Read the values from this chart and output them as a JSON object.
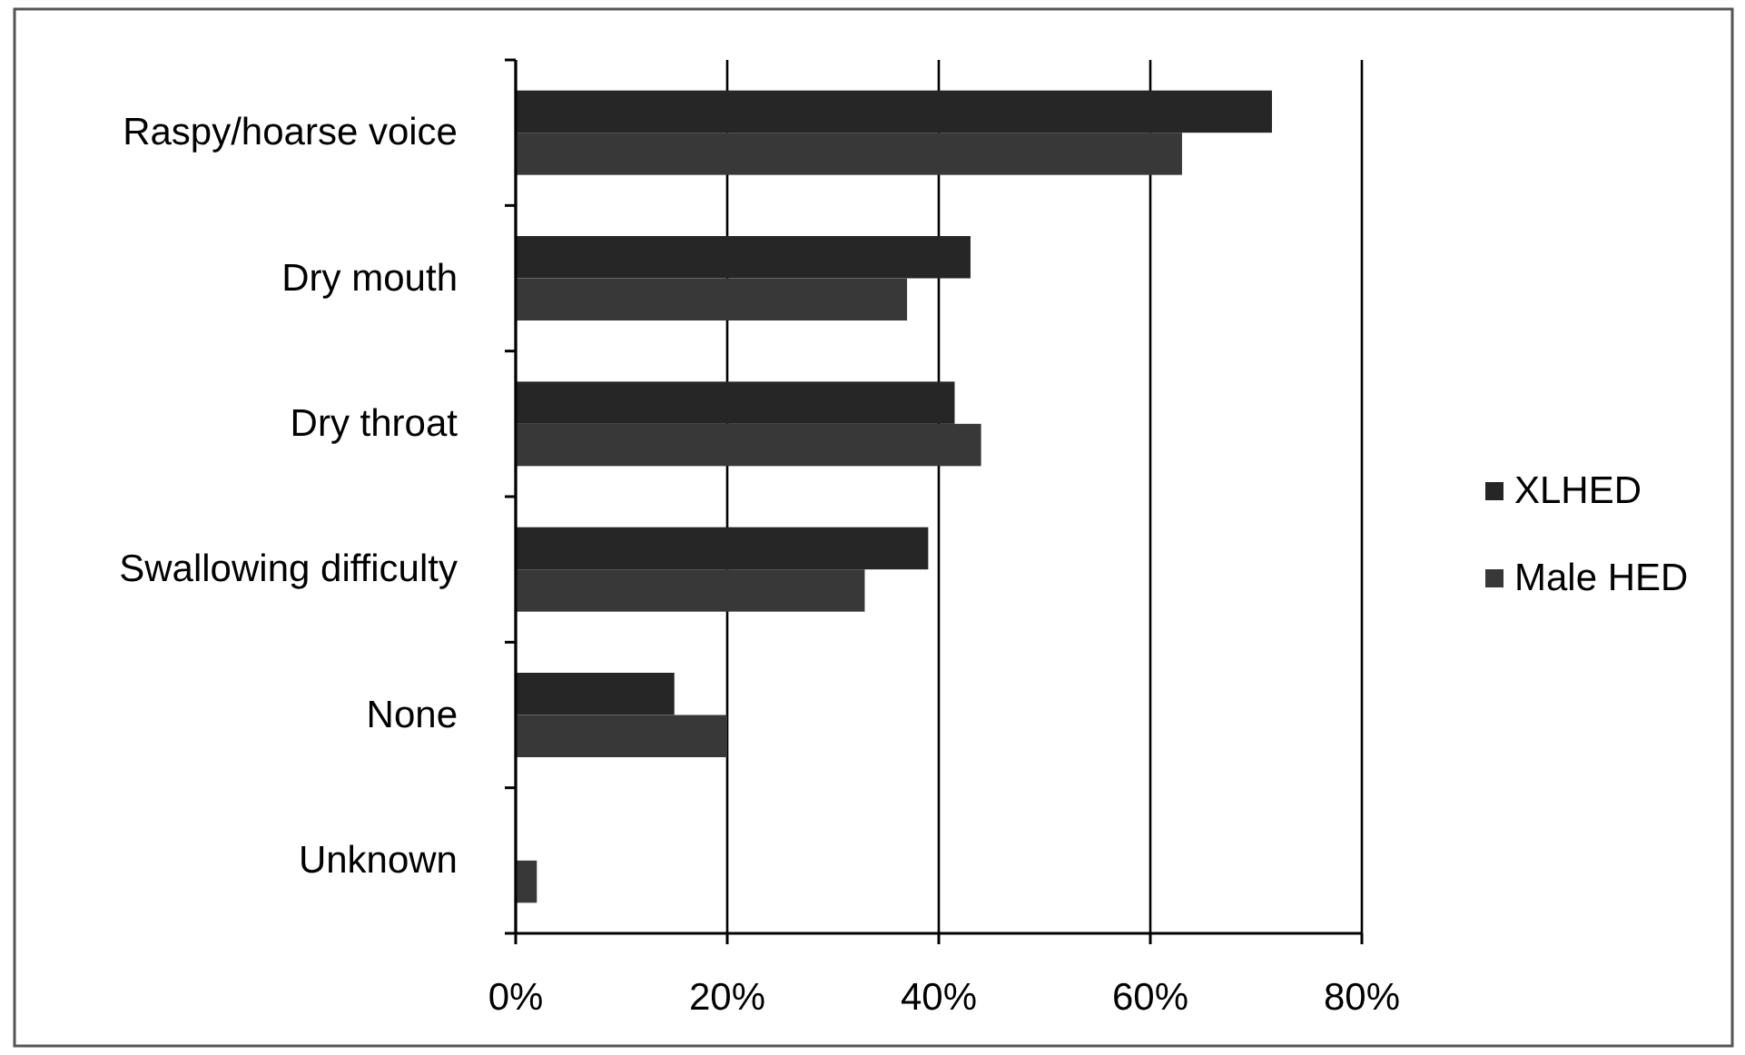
{
  "chart_data": {
    "type": "bar",
    "orientation": "horizontal",
    "categories": [
      "Raspy/hoarse voice",
      "Dry mouth",
      "Dry throat",
      "Swallowing difficulty",
      "None",
      "Unknown"
    ],
    "series": [
      {
        "name": "XLHED",
        "color": "#262626",
        "values": [
          71.5,
          43,
          41.5,
          39,
          15,
          0
        ]
      },
      {
        "name": "Male HED",
        "color": "#383838",
        "values": [
          63,
          37,
          44,
          33,
          20,
          2
        ]
      }
    ],
    "xlim": [
      0,
      80
    ],
    "xticks": [
      {
        "value": 0,
        "label": "0%"
      },
      {
        "value": 20,
        "label": "20%"
      },
      {
        "value": 40,
        "label": "40%"
      },
      {
        "value": 60,
        "label": "60%"
      },
      {
        "value": 80,
        "label": "80%"
      }
    ],
    "grid": "x",
    "legend": "right"
  }
}
